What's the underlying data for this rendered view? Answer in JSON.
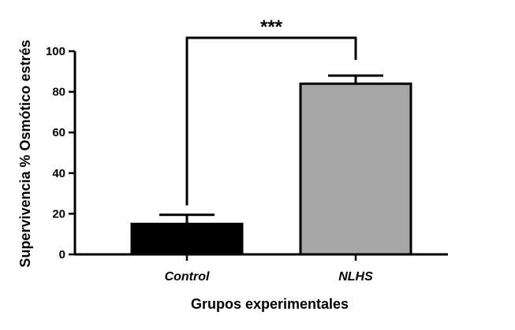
{
  "chart_data": {
    "type": "bar",
    "categories": [
      "Control",
      "NLHS"
    ],
    "values": [
      15,
      84
    ],
    "errors": [
      4.5,
      4
    ],
    "bar_colors": [
      "#000000",
      "#a6a6a6"
    ],
    "xlabel": "Grupos experimentales",
    "ylabel": "Supervivencia % Osmótico estrés",
    "ylim": [
      0,
      100
    ],
    "yticks": [
      0,
      20,
      40,
      60,
      80,
      100
    ],
    "significance": {
      "label": "***",
      "between": [
        0,
        1
      ]
    },
    "grid": false
  }
}
